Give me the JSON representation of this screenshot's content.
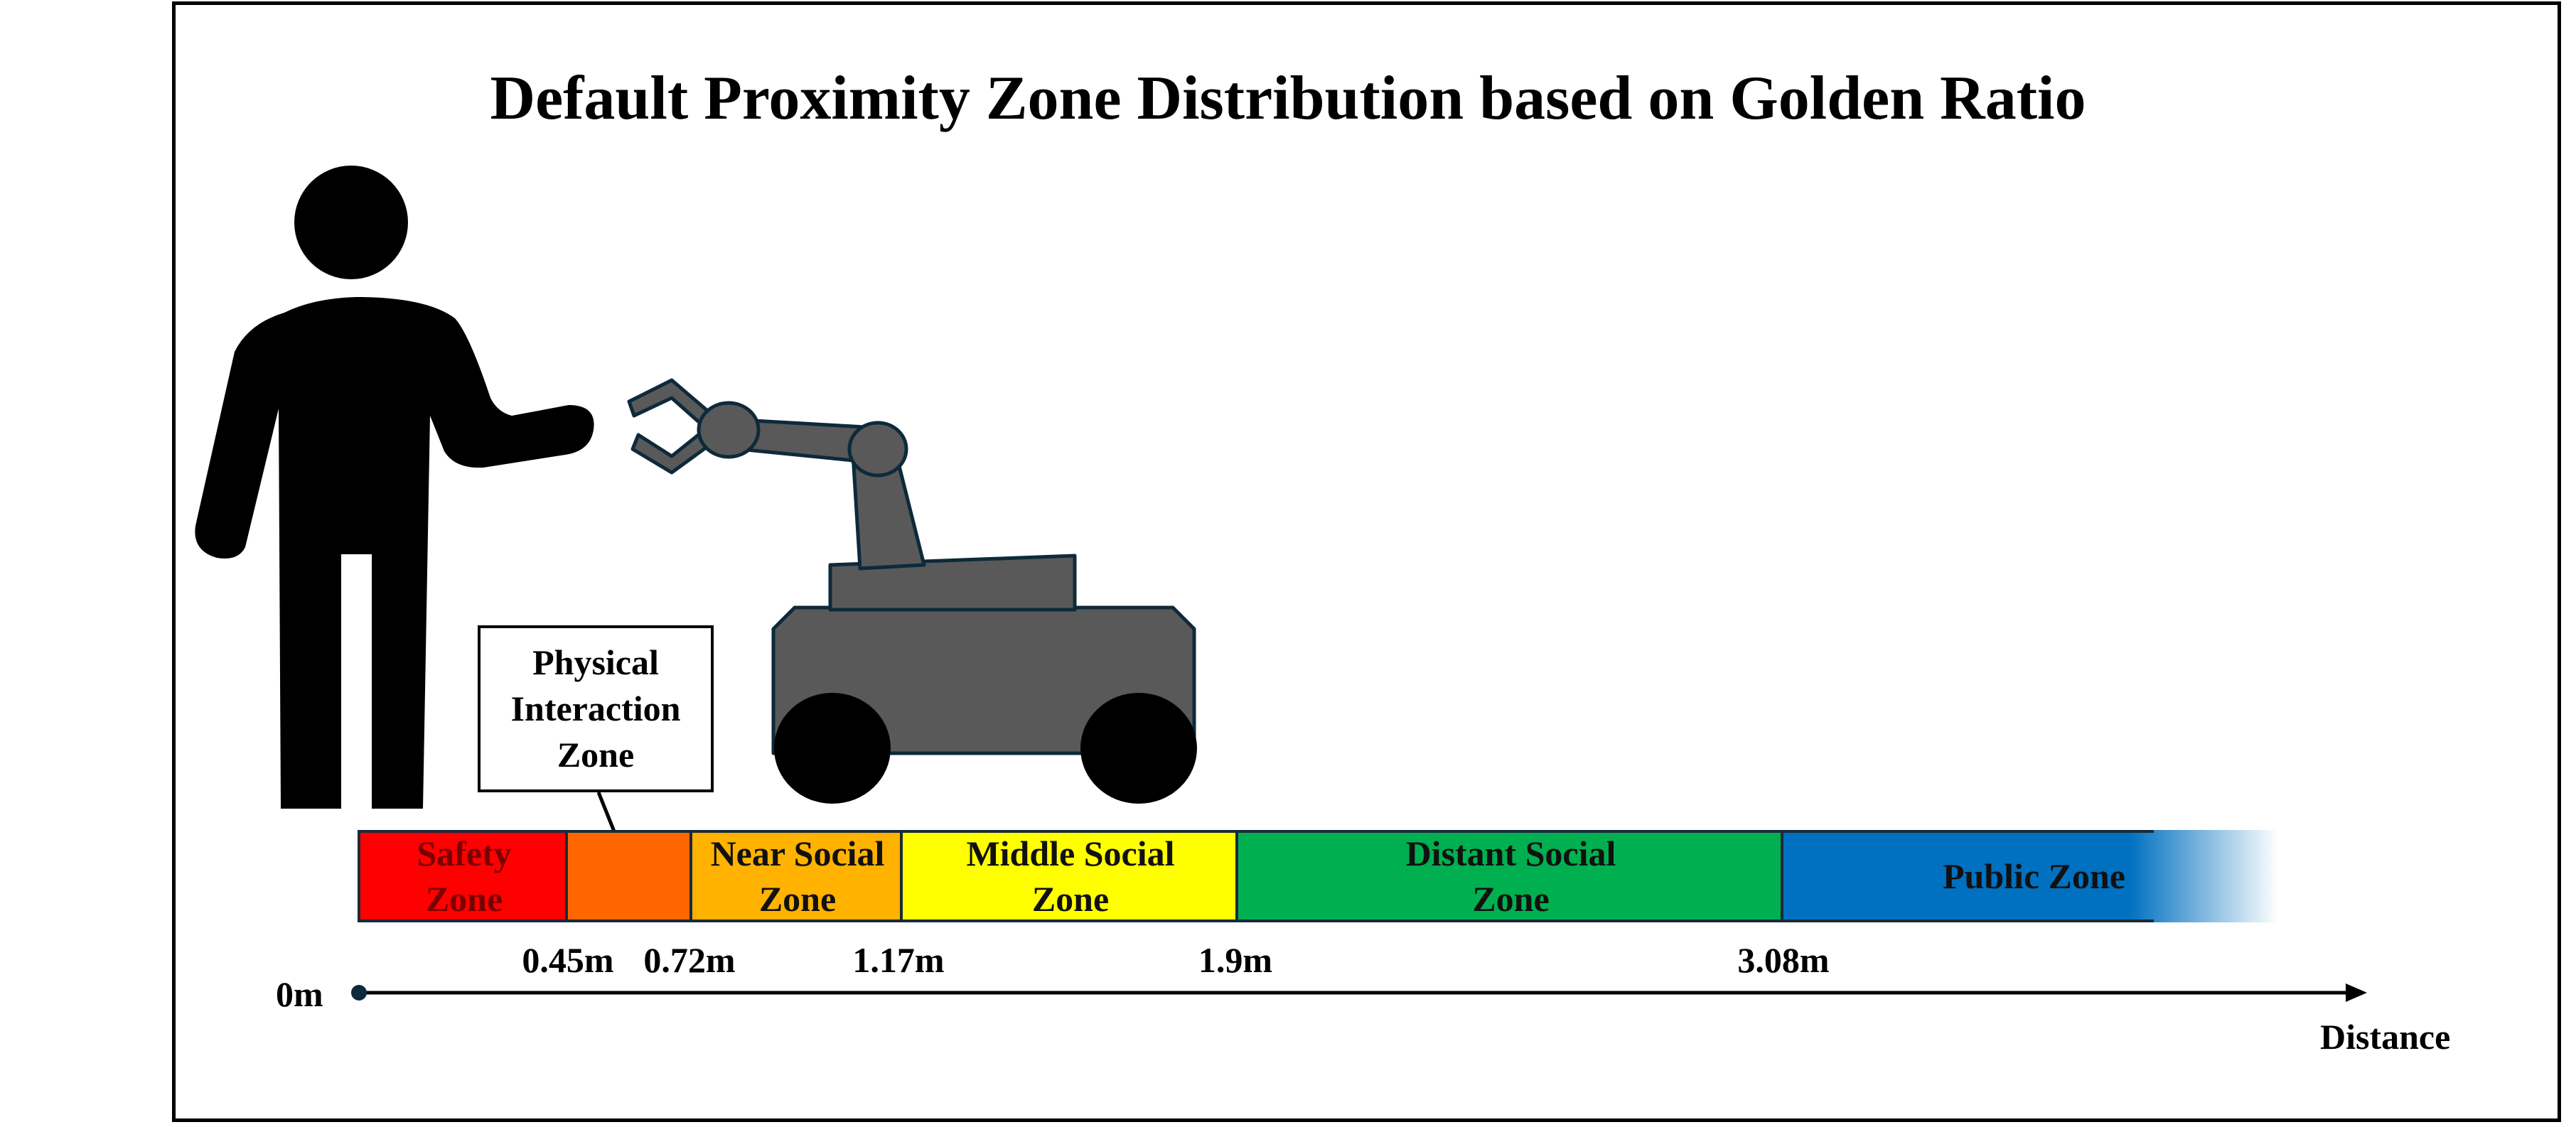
{
  "title": "Default Proximity Zone Distribution based on Golden Ratio",
  "callout": {
    "text": "Physical\nInteraction\nZone"
  },
  "zones": [
    {
      "id": "safety",
      "label": "Safety\nZone",
      "start_m": 0,
      "end_m": 0.45,
      "color": "#ff0000"
    },
    {
      "id": "physical",
      "label": "",
      "start_m": 0.45,
      "end_m": 0.72,
      "color": "#ff6600"
    },
    {
      "id": "near",
      "label": "Near Social\nZone",
      "start_m": 0.72,
      "end_m": 1.17,
      "color": "#ffb200"
    },
    {
      "id": "middle",
      "label": "Middle Social\nZone",
      "start_m": 1.17,
      "end_m": 1.9,
      "color": "#ffff00"
    },
    {
      "id": "distant",
      "label": "Distant Social\nZone",
      "start_m": 1.9,
      "end_m": 3.08,
      "color": "#00b050"
    },
    {
      "id": "public",
      "label": "Public Zone",
      "start_m": 3.08,
      "end_m": null,
      "color": "#0070c0"
    }
  ],
  "axis": {
    "origin_label": "0m",
    "label": "Distance",
    "ticks": [
      "0.45m",
      "0.72m",
      "1.17m",
      "1.9m",
      "3.08m"
    ]
  },
  "icons": {
    "person": "person-icon",
    "robot": "mobile-manipulator-robot-icon"
  },
  "colors": {
    "robot_body": "#595959",
    "robot_outline": "#0d2a3a",
    "person": "#000000"
  }
}
